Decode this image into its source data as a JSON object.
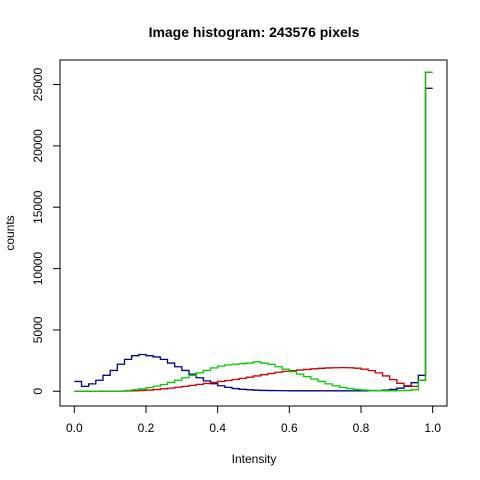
{
  "chart_data": {
    "type": "line",
    "title": "Image histogram: 243576 pixels",
    "xlabel": "Intensity",
    "ylabel": "counts",
    "xlim": [
      -0.04,
      1.04
    ],
    "ylim": [
      -1200,
      27000
    ],
    "x_ticks": [
      0.0,
      0.2,
      0.4,
      0.6,
      0.8,
      1.0
    ],
    "x_tick_labels": [
      "0.0",
      "0.2",
      "0.4",
      "0.6",
      "0.8",
      "1.0"
    ],
    "y_ticks": [
      0,
      5000,
      10000,
      15000,
      20000,
      25000
    ],
    "y_tick_labels": [
      "0",
      "5000",
      "10000",
      "15000",
      "20000",
      "25000"
    ],
    "grid": false,
    "legend": "none",
    "series": [
      {
        "color": "#00008B",
        "x": [
          0.0,
          0.02,
          0.04,
          0.06,
          0.08,
          0.1,
          0.12,
          0.14,
          0.16,
          0.18,
          0.2,
          0.22,
          0.24,
          0.26,
          0.28,
          0.3,
          0.32,
          0.34,
          0.36,
          0.38,
          0.4,
          0.42,
          0.44,
          0.46,
          0.48,
          0.5,
          0.52,
          0.54,
          0.56,
          0.58,
          0.6,
          0.62,
          0.64,
          0.66,
          0.68,
          0.7,
          0.72,
          0.74,
          0.76,
          0.78,
          0.8,
          0.82,
          0.84,
          0.86,
          0.88,
          0.9,
          0.92,
          0.94,
          0.96,
          0.98
        ],
        "values": [
          800,
          400,
          600,
          900,
          1300,
          1700,
          2200,
          2600,
          2900,
          3000,
          2900,
          2800,
          2600,
          2300,
          2000,
          1700,
          1400,
          1100,
          850,
          620,
          450,
          320,
          220,
          160,
          120,
          90,
          70,
          60,
          50,
          45,
          40,
          40,
          40,
          40,
          40,
          40,
          40,
          40,
          40,
          40,
          40,
          50,
          60,
          90,
          150,
          250,
          400,
          700,
          1300,
          24700
        ]
      },
      {
        "color": "#CC0000",
        "x": [
          0.0,
          0.02,
          0.04,
          0.06,
          0.08,
          0.1,
          0.12,
          0.14,
          0.16,
          0.18,
          0.2,
          0.22,
          0.24,
          0.26,
          0.28,
          0.3,
          0.32,
          0.34,
          0.36,
          0.38,
          0.4,
          0.42,
          0.44,
          0.46,
          0.48,
          0.5,
          0.52,
          0.54,
          0.56,
          0.58,
          0.6,
          0.62,
          0.64,
          0.66,
          0.68,
          0.7,
          0.72,
          0.74,
          0.76,
          0.78,
          0.8,
          0.82,
          0.84,
          0.86,
          0.88,
          0.9,
          0.92,
          0.94,
          0.96,
          0.98
        ],
        "values": [
          0,
          0,
          0,
          0,
          0,
          0,
          0,
          20,
          40,
          70,
          100,
          140,
          200,
          260,
          330,
          400,
          480,
          560,
          640,
          720,
          800,
          880,
          960,
          1050,
          1150,
          1250,
          1350,
          1450,
          1550,
          1620,
          1680,
          1730,
          1780,
          1830,
          1870,
          1900,
          1920,
          1930,
          1920,
          1880,
          1800,
          1680,
          1500,
          1250,
          950,
          650,
          450,
          400,
          900,
          26000
        ]
      },
      {
        "color": "#00CC00",
        "x": [
          0.0,
          0.02,
          0.04,
          0.06,
          0.08,
          0.1,
          0.12,
          0.14,
          0.16,
          0.18,
          0.2,
          0.22,
          0.24,
          0.26,
          0.28,
          0.3,
          0.32,
          0.34,
          0.36,
          0.38,
          0.4,
          0.42,
          0.44,
          0.46,
          0.48,
          0.5,
          0.52,
          0.54,
          0.56,
          0.58,
          0.6,
          0.62,
          0.64,
          0.66,
          0.68,
          0.7,
          0.72,
          0.74,
          0.76,
          0.78,
          0.8,
          0.82,
          0.84,
          0.86,
          0.88,
          0.9,
          0.92,
          0.94,
          0.96,
          0.98
        ],
        "values": [
          0,
          0,
          0,
          0,
          0,
          0,
          0,
          60,
          120,
          200,
          300,
          420,
          550,
          720,
          900,
          1100,
          1300,
          1500,
          1700,
          1900,
          2050,
          2150,
          2200,
          2250,
          2300,
          2400,
          2300,
          2200,
          2000,
          1800,
          1600,
          1400,
          1200,
          1000,
          800,
          600,
          450,
          320,
          220,
          150,
          100,
          70,
          50,
          40,
          40,
          50,
          70,
          120,
          900,
          26000
        ]
      }
    ]
  }
}
